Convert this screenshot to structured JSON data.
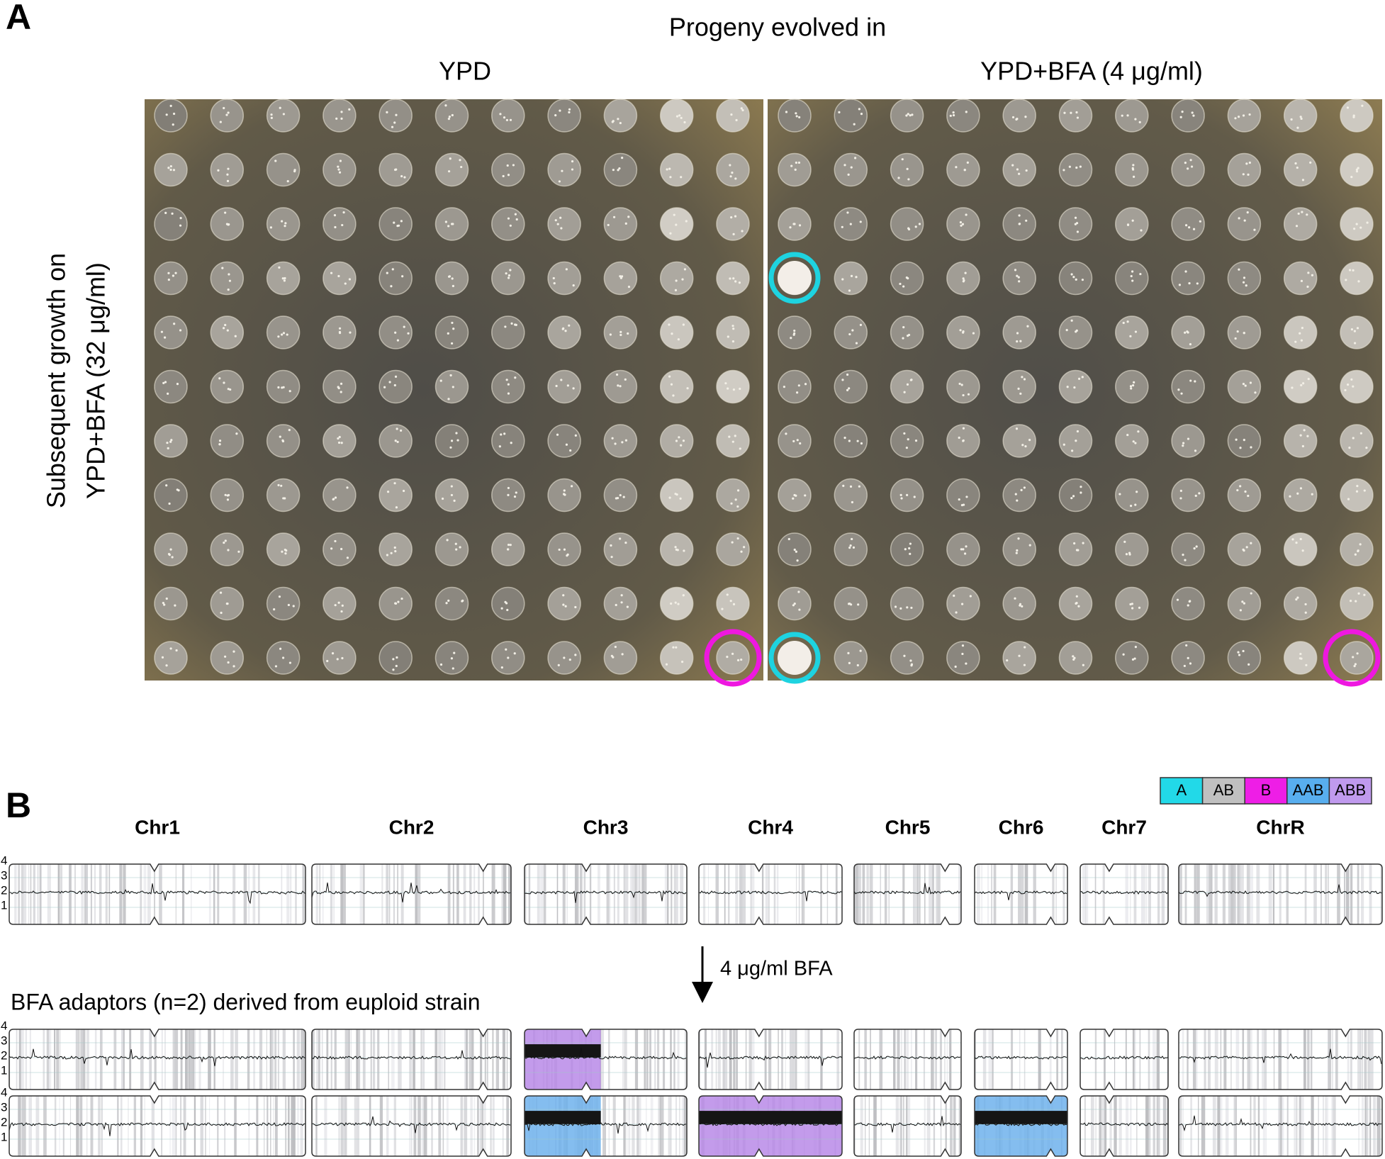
{
  "panel_a": {
    "label": "A",
    "title": "Progeny evolved in",
    "columns": [
      "YPD",
      "YPD+BFA (4 μg/ml)"
    ],
    "y_label": [
      "Subsequent growth on",
      "YPD+BFA (32 μg/ml)"
    ]
  },
  "panel_b": {
    "label": "B",
    "legend": [
      "A",
      "AB",
      "B",
      "AAB",
      "ABB"
    ],
    "chromosomes": [
      "Chr1",
      "Chr2",
      "Chr3",
      "Chr4",
      "Chr5",
      "Chr6",
      "Chr7",
      "ChrR"
    ],
    "copy_ticks": [
      4,
      3,
      2,
      1
    ],
    "arrow_label": "4 μg/ml BFA",
    "row_label": "BFA adaptors (n=2) derived from euploid strain"
  }
}
